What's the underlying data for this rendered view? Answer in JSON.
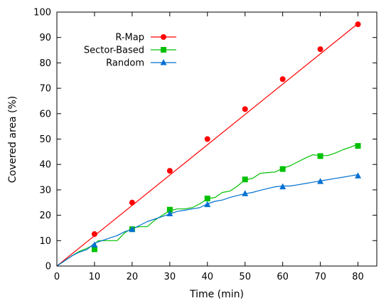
{
  "chart_data": {
    "type": "line",
    "xlabel": "Time (min)",
    "ylabel": "Covered area (%)",
    "xlim": [
      0,
      85
    ],
    "ylim": [
      0,
      100
    ],
    "xticks": [
      0,
      10,
      20,
      30,
      40,
      50,
      60,
      70,
      80
    ],
    "yticks": [
      0,
      10,
      20,
      30,
      40,
      50,
      60,
      70,
      80,
      90,
      100
    ],
    "grid": false,
    "legend_position": "top-left",
    "series": [
      {
        "name": "R-Map",
        "color": "#ff0000",
        "marker": "circle",
        "line": [
          [
            0,
            0
          ],
          [
            80,
            95.5
          ]
        ],
        "markers": [
          [
            10,
            12.6
          ],
          [
            20,
            25
          ],
          [
            30,
            37.5
          ],
          [
            40,
            50
          ],
          [
            50,
            61.8
          ],
          [
            60,
            73.6
          ],
          [
            70,
            85.4
          ],
          [
            80,
            95.2
          ]
        ]
      },
      {
        "name": "Sector-Based",
        "color": "#00c000",
        "marker": "square",
        "line": [
          [
            0,
            0
          ],
          [
            2,
            2
          ],
          [
            4,
            4
          ],
          [
            6,
            5.8
          ],
          [
            8,
            7
          ],
          [
            10,
            8.5
          ],
          [
            11,
            10
          ],
          [
            15,
            10
          ],
          [
            16,
            10
          ],
          [
            18,
            13
          ],
          [
            20,
            15
          ],
          [
            22,
            15.5
          ],
          [
            24,
            15.5
          ],
          [
            26,
            18
          ],
          [
            28,
            20
          ],
          [
            30,
            21.8
          ],
          [
            32,
            22.5
          ],
          [
            34,
            22.5
          ],
          [
            36,
            23
          ],
          [
            38,
            24.5
          ],
          [
            40,
            26.5
          ],
          [
            42,
            27
          ],
          [
            44,
            29
          ],
          [
            46,
            29.5
          ],
          [
            48,
            31.5
          ],
          [
            50,
            34
          ],
          [
            52,
            34.5
          ],
          [
            54,
            36.5
          ],
          [
            56,
            36.8
          ],
          [
            58,
            37
          ],
          [
            60,
            38.5
          ],
          [
            62,
            39.5
          ],
          [
            64,
            41
          ],
          [
            66,
            42.5
          ],
          [
            68,
            43.8
          ],
          [
            70,
            43.5
          ],
          [
            72,
            43.5
          ],
          [
            74,
            44.5
          ],
          [
            76,
            45.8
          ],
          [
            78,
            46.8
          ],
          [
            80,
            48
          ]
        ],
        "markers": [
          [
            10,
            6.6
          ],
          [
            20,
            14.5
          ],
          [
            30,
            22.2
          ],
          [
            40,
            26.6
          ],
          [
            50,
            34.1
          ],
          [
            60,
            38.2
          ],
          [
            70,
            43.3
          ],
          [
            80,
            47.3
          ]
        ]
      },
      {
        "name": "Random",
        "color": "#0070d0",
        "marker": "triangle",
        "line": [
          [
            0,
            0
          ],
          [
            2,
            2
          ],
          [
            4,
            4
          ],
          [
            6,
            5.5
          ],
          [
            8,
            6.5
          ],
          [
            10,
            9
          ],
          [
            12,
            10
          ],
          [
            14,
            11
          ],
          [
            16,
            12
          ],
          [
            18,
            13.5
          ],
          [
            20,
            14.5
          ],
          [
            22,
            16
          ],
          [
            24,
            17.5
          ],
          [
            26,
            18.5
          ],
          [
            28,
            19.5
          ],
          [
            30,
            20.5
          ],
          [
            32,
            21.5
          ],
          [
            34,
            22
          ],
          [
            36,
            22.5
          ],
          [
            38,
            23
          ],
          [
            40,
            24.5
          ],
          [
            42,
            25.5
          ],
          [
            44,
            26
          ],
          [
            46,
            27
          ],
          [
            48,
            27.8
          ],
          [
            50,
            28.5
          ],
          [
            52,
            29
          ],
          [
            54,
            29.8
          ],
          [
            56,
            30.5
          ],
          [
            58,
            31.2
          ],
          [
            60,
            31.5
          ],
          [
            62,
            31.5
          ],
          [
            64,
            32
          ],
          [
            66,
            32.5
          ],
          [
            68,
            33
          ],
          [
            70,
            33.5
          ],
          [
            72,
            34
          ],
          [
            74,
            34.5
          ],
          [
            76,
            35
          ],
          [
            78,
            35.5
          ],
          [
            80,
            36
          ]
        ],
        "markers": [
          [
            10,
            8.3
          ],
          [
            20,
            14.4
          ],
          [
            30,
            20.6
          ],
          [
            40,
            24.2
          ],
          [
            50,
            28.5
          ],
          [
            60,
            31.2
          ],
          [
            70,
            33.3
          ],
          [
            80,
            35.5
          ]
        ]
      }
    ]
  }
}
